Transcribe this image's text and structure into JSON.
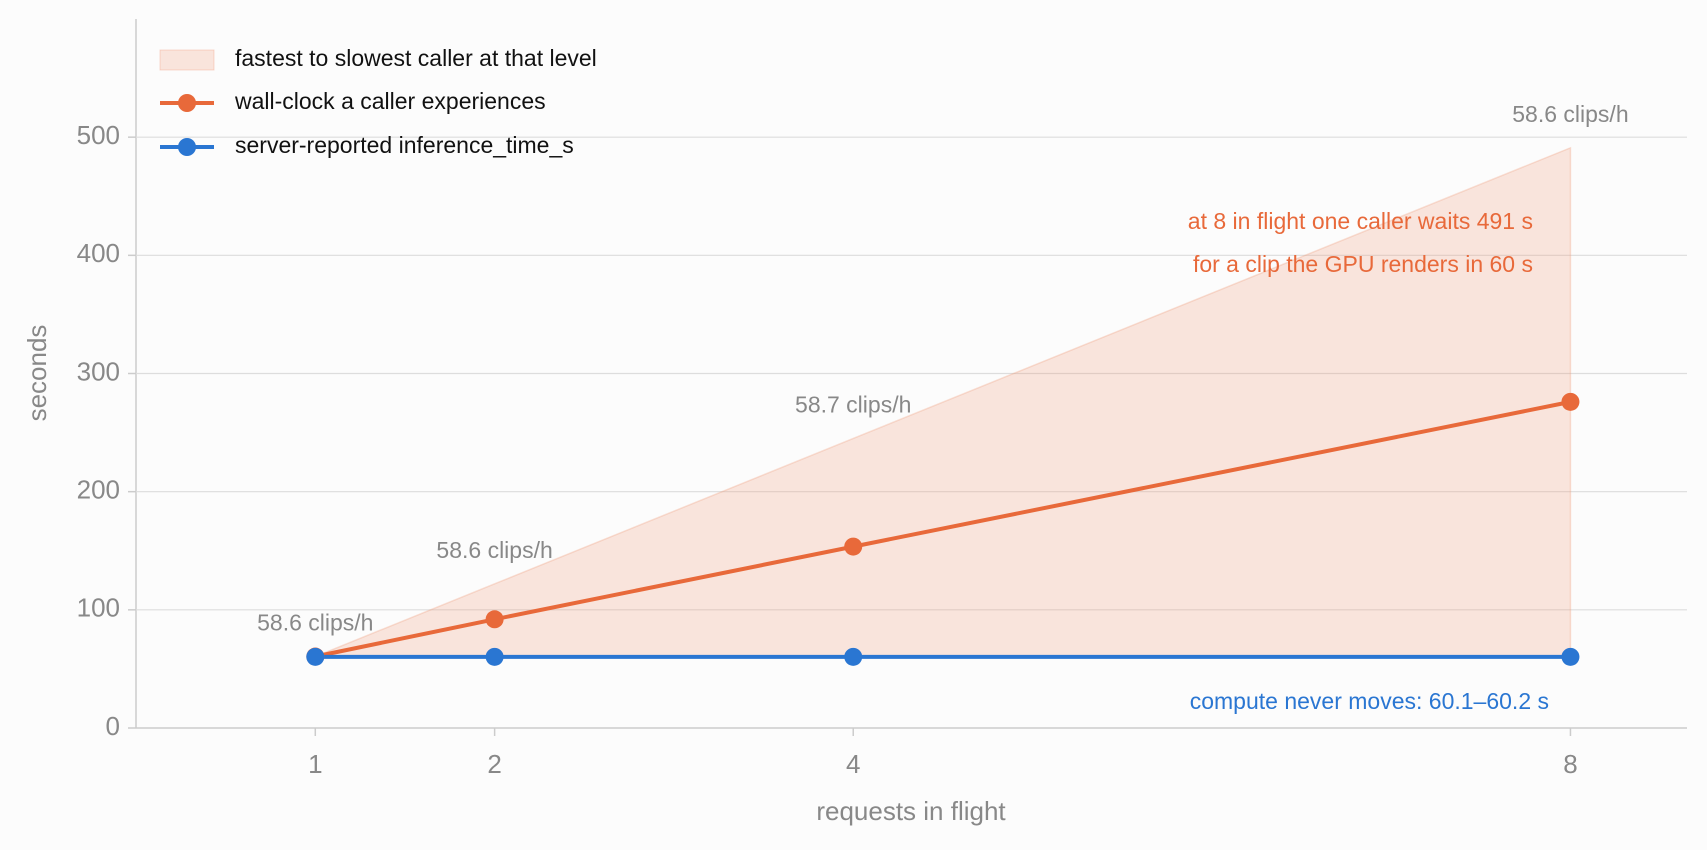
{
  "chart_data": {
    "type": "line",
    "x_label": "requests in flight",
    "y_label": "seconds",
    "x": [
      1,
      2,
      4,
      8
    ],
    "xlim": [
      0,
      8.65
    ],
    "xticks": [
      1,
      2,
      4,
      8
    ],
    "ylim": [
      0,
      600
    ],
    "yticks": [
      0,
      100,
      200,
      300,
      400,
      500
    ],
    "grid": true,
    "legend": "upper left",
    "band": {
      "name": "fastest to slowest caller at that level",
      "color": "#f09a7a",
      "lower": [
        60.2,
        60.2,
        60.2,
        60.2
      ],
      "upper": [
        60.5,
        122,
        245,
        491
      ]
    },
    "series": [
      {
        "name": "wall-clock a caller experiences",
        "color": "#e8693a",
        "values": [
          60.5,
          92,
          153.5,
          276
        ]
      },
      {
        "name": "server-reported inference_time_s",
        "color": "#2a76d2",
        "values": [
          60.2,
          60.2,
          60.2,
          60.2
        ]
      }
    ],
    "throughput": {
      "values": [
        58.6,
        58.6,
        58.7,
        58.6
      ],
      "value_labels": [
        "58.6 clips/h",
        "58.6 clips/h",
        "58.7 clips/h",
        "58.6 clips/h"
      ]
    },
    "annotations": [
      {
        "text": "at 8 in flight one caller waits 491 s",
        "color": "#e8693a"
      },
      {
        "text": "for a clip the GPU renders in 60 s",
        "color": "#e8693a"
      },
      {
        "text": "compute never moves: 60.1–60.2 s",
        "color": "#2a76d2"
      }
    ]
  }
}
